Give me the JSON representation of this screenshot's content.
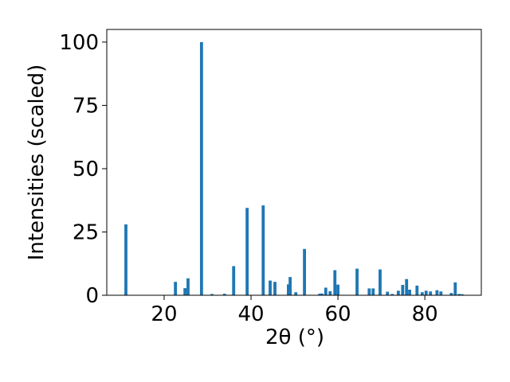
{
  "chart_data": {
    "type": "bar",
    "xlabel": "2θ (°)",
    "ylabel": "Intensities (scaled)",
    "color": "#1f77b4",
    "x": [
      11.2,
      22.6,
      24.8,
      25.5,
      28.6,
      31.0,
      33.9,
      36.0,
      39.1,
      42.8,
      44.4,
      45.5,
      48.6,
      49.0,
      50.3,
      52.3,
      55.8,
      56.3,
      57.2,
      58.2,
      59.3,
      60.0,
      64.4,
      67.2,
      68.1,
      69.7,
      71.4,
      72.5,
      73.9,
      74.9,
      75.8,
      76.5,
      78.2,
      79.4,
      80.3,
      81.3,
      82.8,
      83.7,
      86.1,
      87.0,
      87.9,
      88.6
    ],
    "values": [
      28,
      5.3,
      2.8,
      6.7,
      100,
      0.5,
      0.6,
      11.5,
      34.5,
      35.5,
      5.8,
      5.3,
      4.3,
      7.2,
      1.2,
      18.3,
      0.6,
      0.7,
      3.0,
      1.6,
      9.9,
      4.2,
      10.5,
      2.7,
      2.7,
      10.2,
      1.4,
      0.5,
      1.8,
      4.1,
      6.4,
      2.2,
      3.8,
      1.2,
      1.8,
      1.5,
      2.0,
      1.5,
      0.9,
      5.1,
      0.5,
      0.4
    ],
    "xlim": [
      6.8,
      93
    ],
    "ylim": [
      0,
      105
    ],
    "xticks": [
      20,
      40,
      60,
      80
    ],
    "yticks": [
      0,
      25,
      50,
      75,
      100
    ]
  }
}
